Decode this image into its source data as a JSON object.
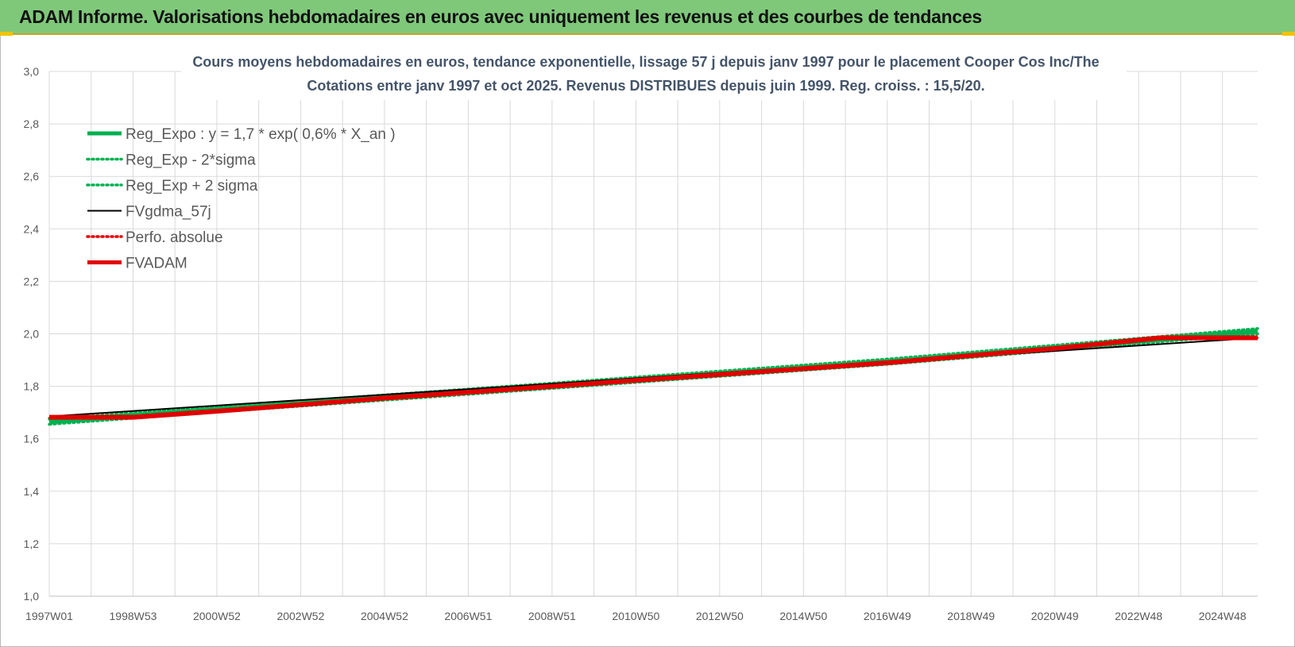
{
  "banner": {
    "title": "ADAM Informe. Valorisations hebdomadaires en euros avec uniquement les revenus et des courbes de tendances"
  },
  "chart_data": {
    "type": "line",
    "title": "Cours moyens hebdomadaires en euros, tendance exponentielle, lissage 57 j depuis janv 1997 pour le placement Cooper Cos Inc/The",
    "subtitle": "Cotations entre janv 1997 et oct 2025. Revenus DISTRIBUES depuis juin 1999. Reg. croiss. : 15,5/20.",
    "xlabel": "",
    "ylabel": "",
    "ylim": [
      1.0,
      3.0
    ],
    "yticks": [
      "1,0",
      "1,2",
      "1,4",
      "1,6",
      "1,8",
      "2,0",
      "2,2",
      "2,4",
      "2,6",
      "2,8",
      "3,0"
    ],
    "xtick_labels": [
      "1997W01",
      "1998W53",
      "2000W52",
      "2002W52",
      "2004W52",
      "2006W51",
      "2008W51",
      "2010W50",
      "2012W50",
      "2014W50",
      "2016W49",
      "2018W49",
      "2020W49",
      "2022W48",
      "2024W48"
    ],
    "x_range_years": [
      1997.0,
      2025.8
    ],
    "grid": true,
    "legend_position": "top-left",
    "series": [
      {
        "name": "Reg_Expo : y = 1,7 * exp( 0,6% *  X_an )",
        "color": "#00b050",
        "style": "solid",
        "x": [
          1997.0,
          2001.0,
          2005.0,
          2009.0,
          2013.0,
          2017.0,
          2021.0,
          2025.8
        ],
        "y": [
          1.665,
          1.712,
          1.757,
          1.802,
          1.848,
          1.894,
          1.947,
          2.01
        ]
      },
      {
        "name": "Reg_Exp - 2*sigma",
        "color": "#00b050",
        "style": "dotted",
        "x": [
          1997.0,
          2001.0,
          2005.0,
          2009.0,
          2013.0,
          2017.0,
          2021.0,
          2025.8
        ],
        "y": [
          1.655,
          1.702,
          1.747,
          1.792,
          1.838,
          1.884,
          1.937,
          2.0
        ]
      },
      {
        "name": "Reg_Exp + 2 sigma",
        "color": "#00b050",
        "style": "dotted",
        "x": [
          1997.0,
          2001.0,
          2005.0,
          2009.0,
          2013.0,
          2017.0,
          2021.0,
          2025.8
        ],
        "y": [
          1.675,
          1.722,
          1.767,
          1.812,
          1.858,
          1.904,
          1.957,
          2.02
        ]
      },
      {
        "name": "FVgdma_57j",
        "color": "#000000",
        "style": "solid",
        "x": [
          1997.0,
          2025.8
        ],
        "y": [
          1.685,
          1.985
        ]
      },
      {
        "name": "Perfo. absolue",
        "color": "#e00000",
        "style": "dotted",
        "x": [
          1997.0,
          1999.0,
          2001.0,
          2005.0,
          2009.0,
          2013.0,
          2017.0,
          2021.0,
          2023.5,
          2025.8
        ],
        "y": [
          1.68,
          1.68,
          1.705,
          1.755,
          1.8,
          1.845,
          1.89,
          1.945,
          1.985,
          1.985
        ]
      },
      {
        "name": "FVADAM",
        "color": "#e00000",
        "style": "solid",
        "x": [
          1997.0,
          1999.0,
          2001.0,
          2005.0,
          2009.0,
          2013.0,
          2017.0,
          2021.0,
          2023.5,
          2025.8
        ],
        "y": [
          1.682,
          1.682,
          1.705,
          1.755,
          1.8,
          1.845,
          1.89,
          1.945,
          1.985,
          1.985
        ]
      }
    ]
  }
}
